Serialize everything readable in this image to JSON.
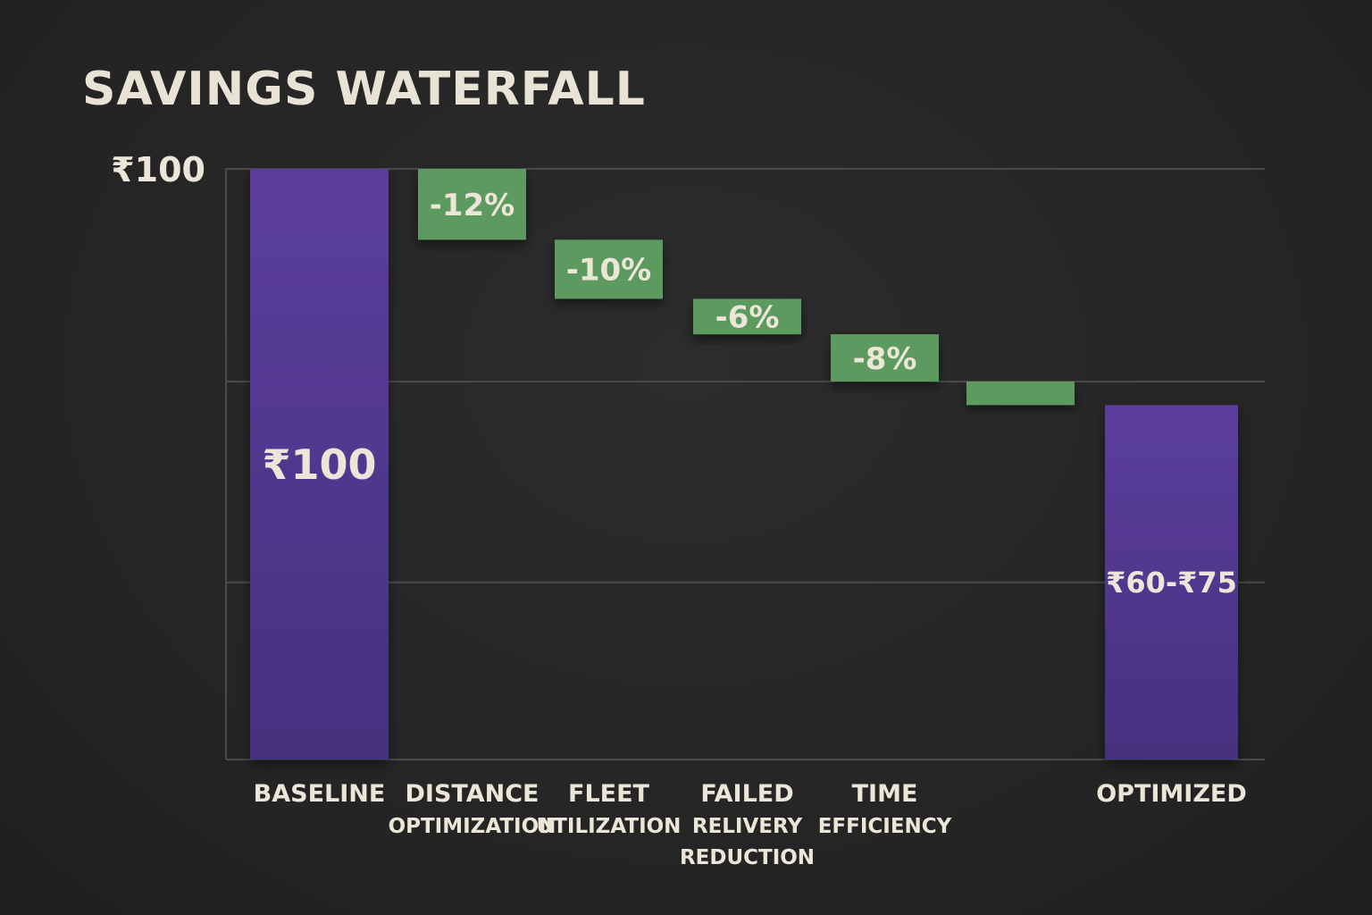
{
  "chart_data": {
    "type": "waterfall",
    "title": "SAVINGS WATERFALL",
    "ylim": [
      0,
      100
    ],
    "y_tick_labels": [
      {
        "value": 100,
        "label": "₹100"
      }
    ],
    "gridlines": [
      100,
      64,
      30,
      0
    ],
    "grid": true,
    "colors": {
      "total": "#56389a",
      "decrease": "#5c9a60",
      "text": "#ece6d8",
      "background": "#262626",
      "grid": "#4a4a4a"
    },
    "bars": [
      {
        "category": [
          "BASELINE"
        ],
        "kind": "total",
        "value": 100,
        "label": "₹100"
      },
      {
        "category": [
          "DISTANCE",
          "OPTIMIZATION"
        ],
        "kind": "decrease",
        "value": 12,
        "label": "-12%"
      },
      {
        "category": [
          "FLEET",
          "UTILIZATION"
        ],
        "kind": "decrease",
        "value": 10,
        "label": "-10%"
      },
      {
        "category": [
          "FAILED",
          "RELIVERY",
          "REDUCTION"
        ],
        "kind": "decrease",
        "value": 6,
        "label": "-6%"
      },
      {
        "category": [
          "TIME",
          "EFFICIENCY"
        ],
        "kind": "decrease",
        "value": 8,
        "label": "-8%"
      },
      {
        "category": [],
        "kind": "decrease",
        "value": 4,
        "label": ""
      },
      {
        "category": [
          "OPTIMIZED"
        ],
        "kind": "total",
        "value": 60,
        "label": "₹60-₹75"
      }
    ]
  }
}
